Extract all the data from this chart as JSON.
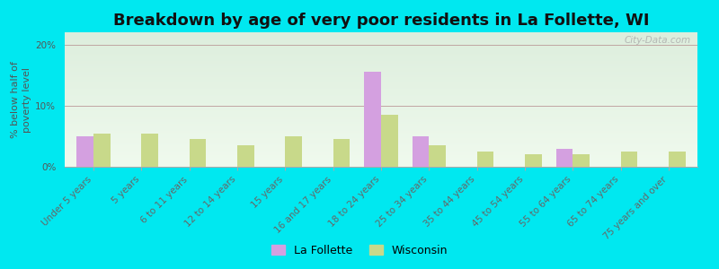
{
  "title": "Breakdown by age of very poor residents in La Follette, WI",
  "ylabel": "% below half of\npoverty level",
  "categories": [
    "Under 5 years",
    "5 years",
    "6 to 11 years",
    "12 to 14 years",
    "15 years",
    "16 and 17 years",
    "18 to 24 years",
    "25 to 34 years",
    "35 to 44 years",
    "45 to 54 years",
    "55 to 64 years",
    "65 to 74 years",
    "75 years and over"
  ],
  "la_follette": [
    5.0,
    0.0,
    0.0,
    0.0,
    0.0,
    0.0,
    15.5,
    5.0,
    0.0,
    0.0,
    3.0,
    0.0,
    0.0
  ],
  "wisconsin": [
    5.5,
    5.5,
    4.5,
    3.5,
    5.0,
    4.5,
    8.5,
    3.5,
    2.5,
    2.0,
    2.0,
    2.5,
    2.5
  ],
  "la_follette_color": "#d4a0e0",
  "wisconsin_color": "#c8d98a",
  "background_outer": "#00e8f0",
  "background_plot_top": "#ddeedd",
  "background_plot_bottom": "#f0faee",
  "ylim": [
    0,
    22
  ],
  "yticks": [
    0,
    10,
    20
  ],
  "ytick_labels": [
    "0%",
    "10%",
    "20%"
  ],
  "bar_width": 0.35,
  "title_fontsize": 13,
  "axis_label_fontsize": 8,
  "tick_fontsize": 7.5,
  "legend_fontsize": 9,
  "watermark": "City-Data.com"
}
